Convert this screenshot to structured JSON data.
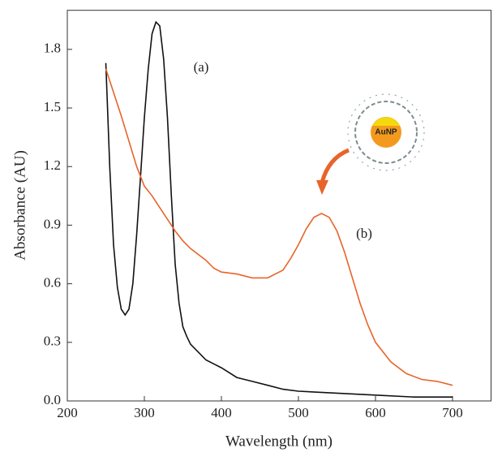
{
  "chart_data": {
    "type": "line",
    "xlabel": "Wavelength (nm)",
    "ylabel": "Absorbance (AU)",
    "xlim": [
      200,
      750
    ],
    "ylim": [
      0,
      2.0
    ],
    "xticks": [
      200,
      300,
      400,
      500,
      600,
      700
    ],
    "yticks": [
      {
        "value": 0,
        "label": "0.0"
      },
      0.3,
      0.6,
      0.9,
      1.2,
      1.5,
      1.8
    ],
    "grid": false,
    "series": [
      {
        "name": "(a)",
        "color": "#111111",
        "x": [
          250,
          255,
          260,
          265,
          270,
          275,
          280,
          285,
          290,
          295,
          300,
          305,
          310,
          315,
          320,
          325,
          330,
          335,
          340,
          345,
          350,
          355,
          360,
          370,
          380,
          390,
          400,
          420,
          440,
          460,
          480,
          500,
          550,
          600,
          650,
          700
        ],
        "values": [
          1.73,
          1.2,
          0.8,
          0.58,
          0.47,
          0.44,
          0.47,
          0.6,
          0.85,
          1.15,
          1.45,
          1.7,
          1.88,
          1.94,
          1.92,
          1.75,
          1.45,
          1.05,
          0.7,
          0.5,
          0.38,
          0.33,
          0.29,
          0.25,
          0.21,
          0.19,
          0.17,
          0.12,
          0.1,
          0.08,
          0.06,
          0.05,
          0.04,
          0.03,
          0.02,
          0.02
        ]
      },
      {
        "name": "(b)",
        "color": "#e8642a",
        "x": [
          250,
          260,
          270,
          280,
          290,
          300,
          310,
          320,
          330,
          340,
          350,
          360,
          370,
          380,
          390,
          400,
          420,
          440,
          460,
          480,
          490,
          500,
          510,
          520,
          530,
          540,
          550,
          560,
          570,
          580,
          590,
          600,
          620,
          640,
          660,
          680,
          700
        ],
        "values": [
          1.7,
          1.58,
          1.46,
          1.33,
          1.2,
          1.1,
          1.05,
          0.99,
          0.93,
          0.87,
          0.82,
          0.78,
          0.75,
          0.72,
          0.68,
          0.66,
          0.65,
          0.63,
          0.63,
          0.67,
          0.73,
          0.8,
          0.88,
          0.94,
          0.96,
          0.94,
          0.87,
          0.76,
          0.63,
          0.5,
          0.39,
          0.3,
          0.2,
          0.14,
          0.11,
          0.1,
          0.08
        ]
      }
    ],
    "annotations": [
      "AuNP"
    ]
  }
}
